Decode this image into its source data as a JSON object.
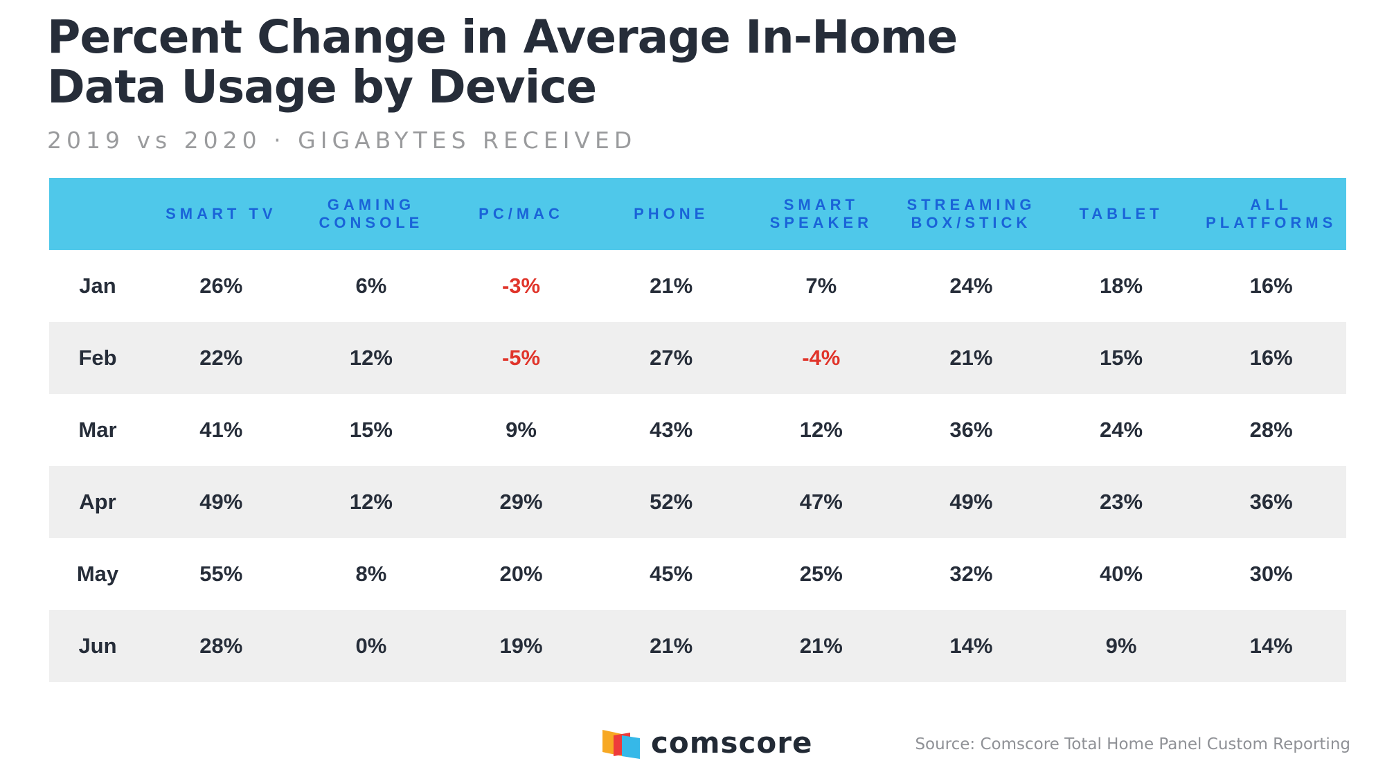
{
  "title_lines": [
    "Percent Change in Average In-Home",
    "Data Usage by Device"
  ],
  "subtitle": "2019 vs 2020 · GIGABYTES RECEIVED",
  "colors": {
    "header_bg": "#4fc8ea",
    "header_text": "#1a63d8",
    "negative": "#e0342a",
    "stripe": "#efefef",
    "title": "#262d39"
  },
  "chart_data": {
    "type": "table",
    "title": "Percent Change in Average In-Home Data Usage by Device",
    "subtitle": "2019 vs 2020 · GIGABYTES RECEIVED",
    "columns": [
      {
        "lines": [
          "SMART TV"
        ]
      },
      {
        "lines": [
          "GAMING",
          "CONSOLE"
        ]
      },
      {
        "lines": [
          "PC/MAC"
        ]
      },
      {
        "lines": [
          "PHONE"
        ]
      },
      {
        "lines": [
          "SMART",
          "SPEAKER"
        ]
      },
      {
        "lines": [
          "STREAMING",
          "BOX/STICK"
        ]
      },
      {
        "lines": [
          "TABLET"
        ]
      },
      {
        "lines": [
          "ALL",
          "PLATFORMS"
        ]
      }
    ],
    "rows": [
      {
        "label": "Jan",
        "values": [
          "26%",
          "6%",
          "-3%",
          "21%",
          "7%",
          "24%",
          "18%",
          "16%"
        ]
      },
      {
        "label": "Feb",
        "values": [
          "22%",
          "12%",
          "-5%",
          "27%",
          "-4%",
          "21%",
          "15%",
          "16%"
        ]
      },
      {
        "label": "Mar",
        "values": [
          "41%",
          "15%",
          "9%",
          "43%",
          "12%",
          "36%",
          "24%",
          "28%"
        ]
      },
      {
        "label": "Apr",
        "values": [
          "49%",
          "12%",
          "29%",
          "52%",
          "47%",
          "49%",
          "23%",
          "36%"
        ]
      },
      {
        "label": "May",
        "values": [
          "55%",
          "8%",
          "20%",
          "45%",
          "25%",
          "32%",
          "40%",
          "30%"
        ]
      },
      {
        "label": "Jun",
        "values": [
          "28%",
          "0%",
          "19%",
          "21%",
          "21%",
          "14%",
          "9%",
          "14%"
        ]
      }
    ]
  },
  "footer": {
    "brand": "comscore",
    "source": "Source: Comscore Total Home Panel Custom Reporting"
  },
  "icons": {
    "logo": "comscore-logo-icon"
  }
}
